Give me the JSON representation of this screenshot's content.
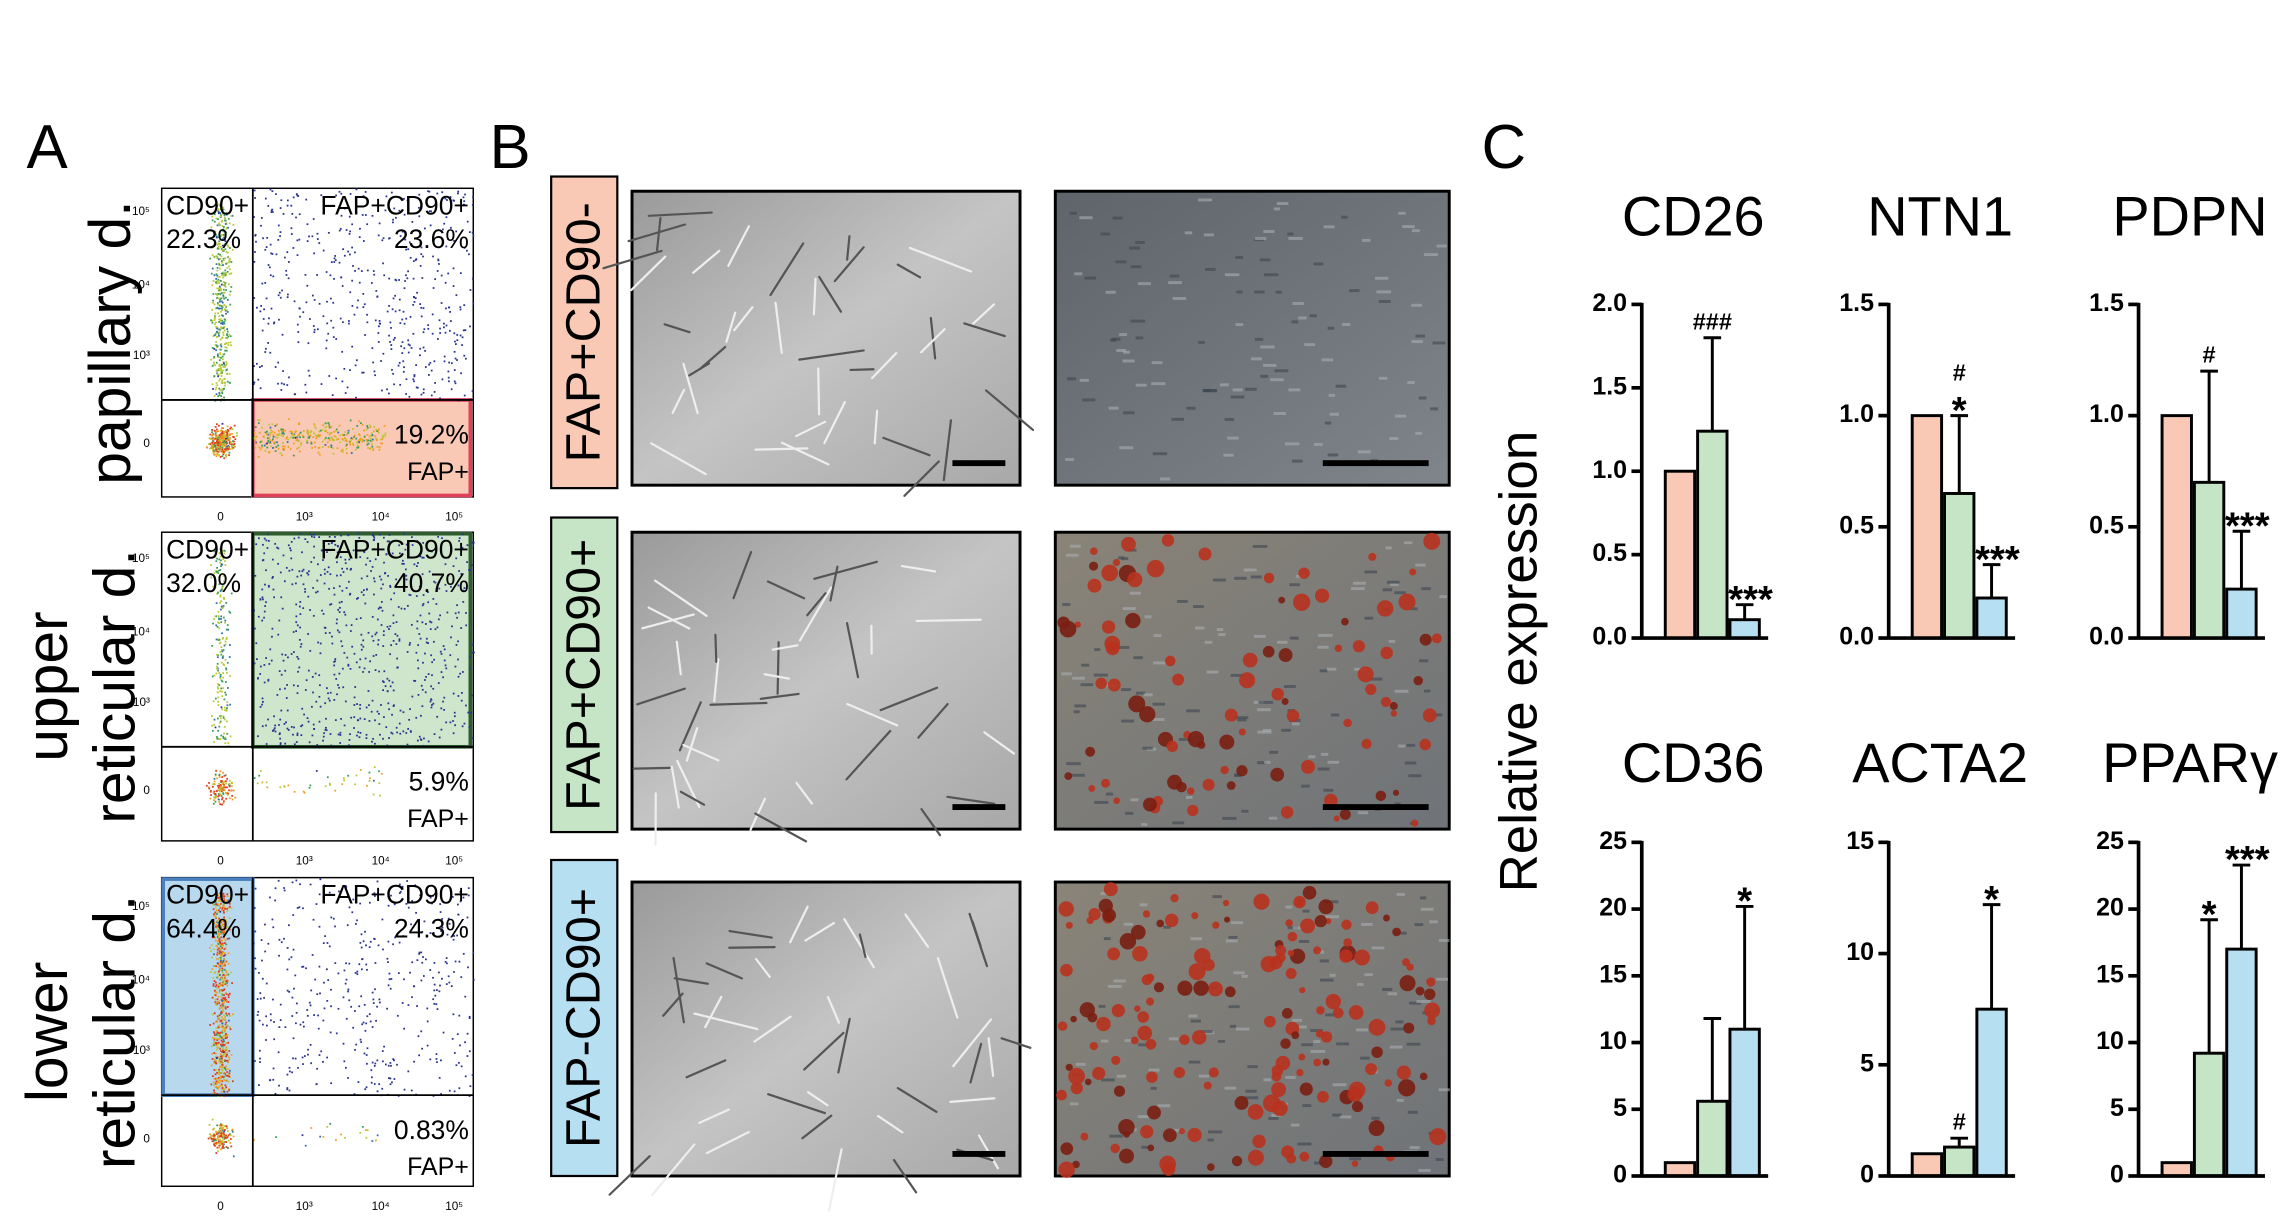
{
  "figure": {
    "panels": [
      "A",
      "B",
      "C"
    ],
    "y_label": "Relative expression"
  },
  "flow": {
    "ticks": [
      "0",
      "10³",
      "10⁴",
      "10⁵"
    ],
    "plots": [
      {
        "label": [
          "papillary d."
        ],
        "gate": "lr",
        "ul": [
          "CD90+",
          "22.3%"
        ],
        "ur": [
          "FAP+CD90+",
          "23.6%"
        ],
        "lr": [
          "19.2%",
          "FAP+"
        ]
      },
      {
        "label": [
          "upper",
          "reticular d."
        ],
        "gate": "ur",
        "ul": [
          "CD90+",
          "32.0%"
        ],
        "ur": [
          "FAP+CD90+",
          "40.7%"
        ],
        "lr": [
          "5.9%",
          "FAP+"
        ]
      },
      {
        "label": [
          "lower",
          "reticular d."
        ],
        "gate": "ul",
        "ul": [
          "CD90+",
          "64.4%"
        ],
        "ur": [
          "FAP+CD90+",
          "24.3%"
        ],
        "lr": [
          "0.83%",
          "FAP+"
        ]
      }
    ]
  },
  "micrographs": {
    "rows": [
      "FAP+CD90-",
      "FAP+CD90+",
      "FAP-CD90+"
    ],
    "colors": [
      "#f9c9b5",
      "#c6e5c6",
      "#b7dff2"
    ]
  },
  "chart_data": [
    {
      "type": "bar",
      "title": "CD26",
      "categories": [
        null,
        null,
        null
      ],
      "values": [
        1.0,
        1.24,
        0.11
      ],
      "errors": [
        null,
        0.56,
        0.09
      ],
      "colors": [
        "#f9c9b5",
        "#c6e5c6",
        "#b7dff2"
      ],
      "ylim": [
        0,
        2
      ],
      "yticks": [
        {
          "value": 0,
          "label": "0.0"
        },
        {
          "value": 0.5,
          "label": "0.5"
        },
        {
          "value": 1,
          "label": "1.0"
        },
        {
          "value": 1.5,
          "label": "1.5"
        },
        {
          "value": 2,
          "label": "2.0"
        }
      ],
      "annotations": [
        null,
        [
          "###"
        ],
        [
          "***"
        ]
      ]
    },
    {
      "type": "bar",
      "title": "NTN1",
      "categories": [
        null,
        null,
        null
      ],
      "values": [
        1.0,
        0.65,
        0.18
      ],
      "errors": [
        null,
        0.35,
        0.15
      ],
      "colors": [
        "#f9c9b5",
        "#c6e5c6",
        "#b7dff2"
      ],
      "ylim": [
        0,
        1.5
      ],
      "yticks": [
        {
          "value": 0,
          "label": "0.0"
        },
        {
          "value": 0.5,
          "label": "0.5"
        },
        {
          "value": 1,
          "label": "1.0"
        },
        {
          "value": 1.5,
          "label": "1.5"
        }
      ],
      "annotations": [
        null,
        [
          "#",
          "*"
        ],
        [
          "***"
        ]
      ]
    },
    {
      "type": "bar",
      "title": "PDPN",
      "categories": [
        null,
        null,
        null
      ],
      "values": [
        1.0,
        0.7,
        0.22
      ],
      "errors": [
        null,
        0.5,
        0.26
      ],
      "colors": [
        "#f9c9b5",
        "#c6e5c6",
        "#b7dff2"
      ],
      "ylim": [
        0,
        1.5
      ],
      "yticks": [
        {
          "value": 0,
          "label": "0.0"
        },
        {
          "value": 0.5,
          "label": "0.5"
        },
        {
          "value": 1,
          "label": "1.0"
        },
        {
          "value": 1.5,
          "label": "1.5"
        }
      ],
      "annotations": [
        null,
        [
          "#"
        ],
        [
          "***"
        ]
      ]
    },
    {
      "type": "bar",
      "title": "CD36",
      "categories": [
        null,
        null,
        null
      ],
      "values": [
        1.0,
        5.6,
        11.0
      ],
      "errors": [
        null,
        6.2,
        9.2
      ],
      "colors": [
        "#f9c9b5",
        "#c6e5c6",
        "#b7dff2"
      ],
      "ylim": [
        0,
        25
      ],
      "yticks": [
        0,
        5,
        10,
        15,
        20,
        25
      ],
      "annotations": [
        null,
        null,
        [
          "*"
        ]
      ]
    },
    {
      "type": "bar",
      "title": "ACTA2",
      "categories": [
        null,
        null,
        null
      ],
      "values": [
        1.0,
        1.3,
        7.5
      ],
      "errors": [
        null,
        0.4,
        4.7
      ],
      "colors": [
        "#f9c9b5",
        "#c6e5c6",
        "#b7dff2"
      ],
      "ylim": [
        0,
        15
      ],
      "yticks": [
        0,
        5,
        10,
        15
      ],
      "annotations": [
        null,
        [
          "#"
        ],
        [
          "*"
        ]
      ]
    },
    {
      "type": "bar",
      "title": "PPARγ",
      "categories": [
        null,
        null,
        null
      ],
      "values": [
        1.0,
        9.2,
        17.0
      ],
      "errors": [
        null,
        10.0,
        6.3
      ],
      "colors": [
        "#f9c9b5",
        "#c6e5c6",
        "#b7dff2"
      ],
      "ylim": [
        0,
        25
      ],
      "yticks": [
        0,
        5,
        10,
        15,
        20,
        25
      ],
      "annotations": [
        null,
        [
          "*"
        ],
        [
          "***"
        ]
      ]
    }
  ]
}
